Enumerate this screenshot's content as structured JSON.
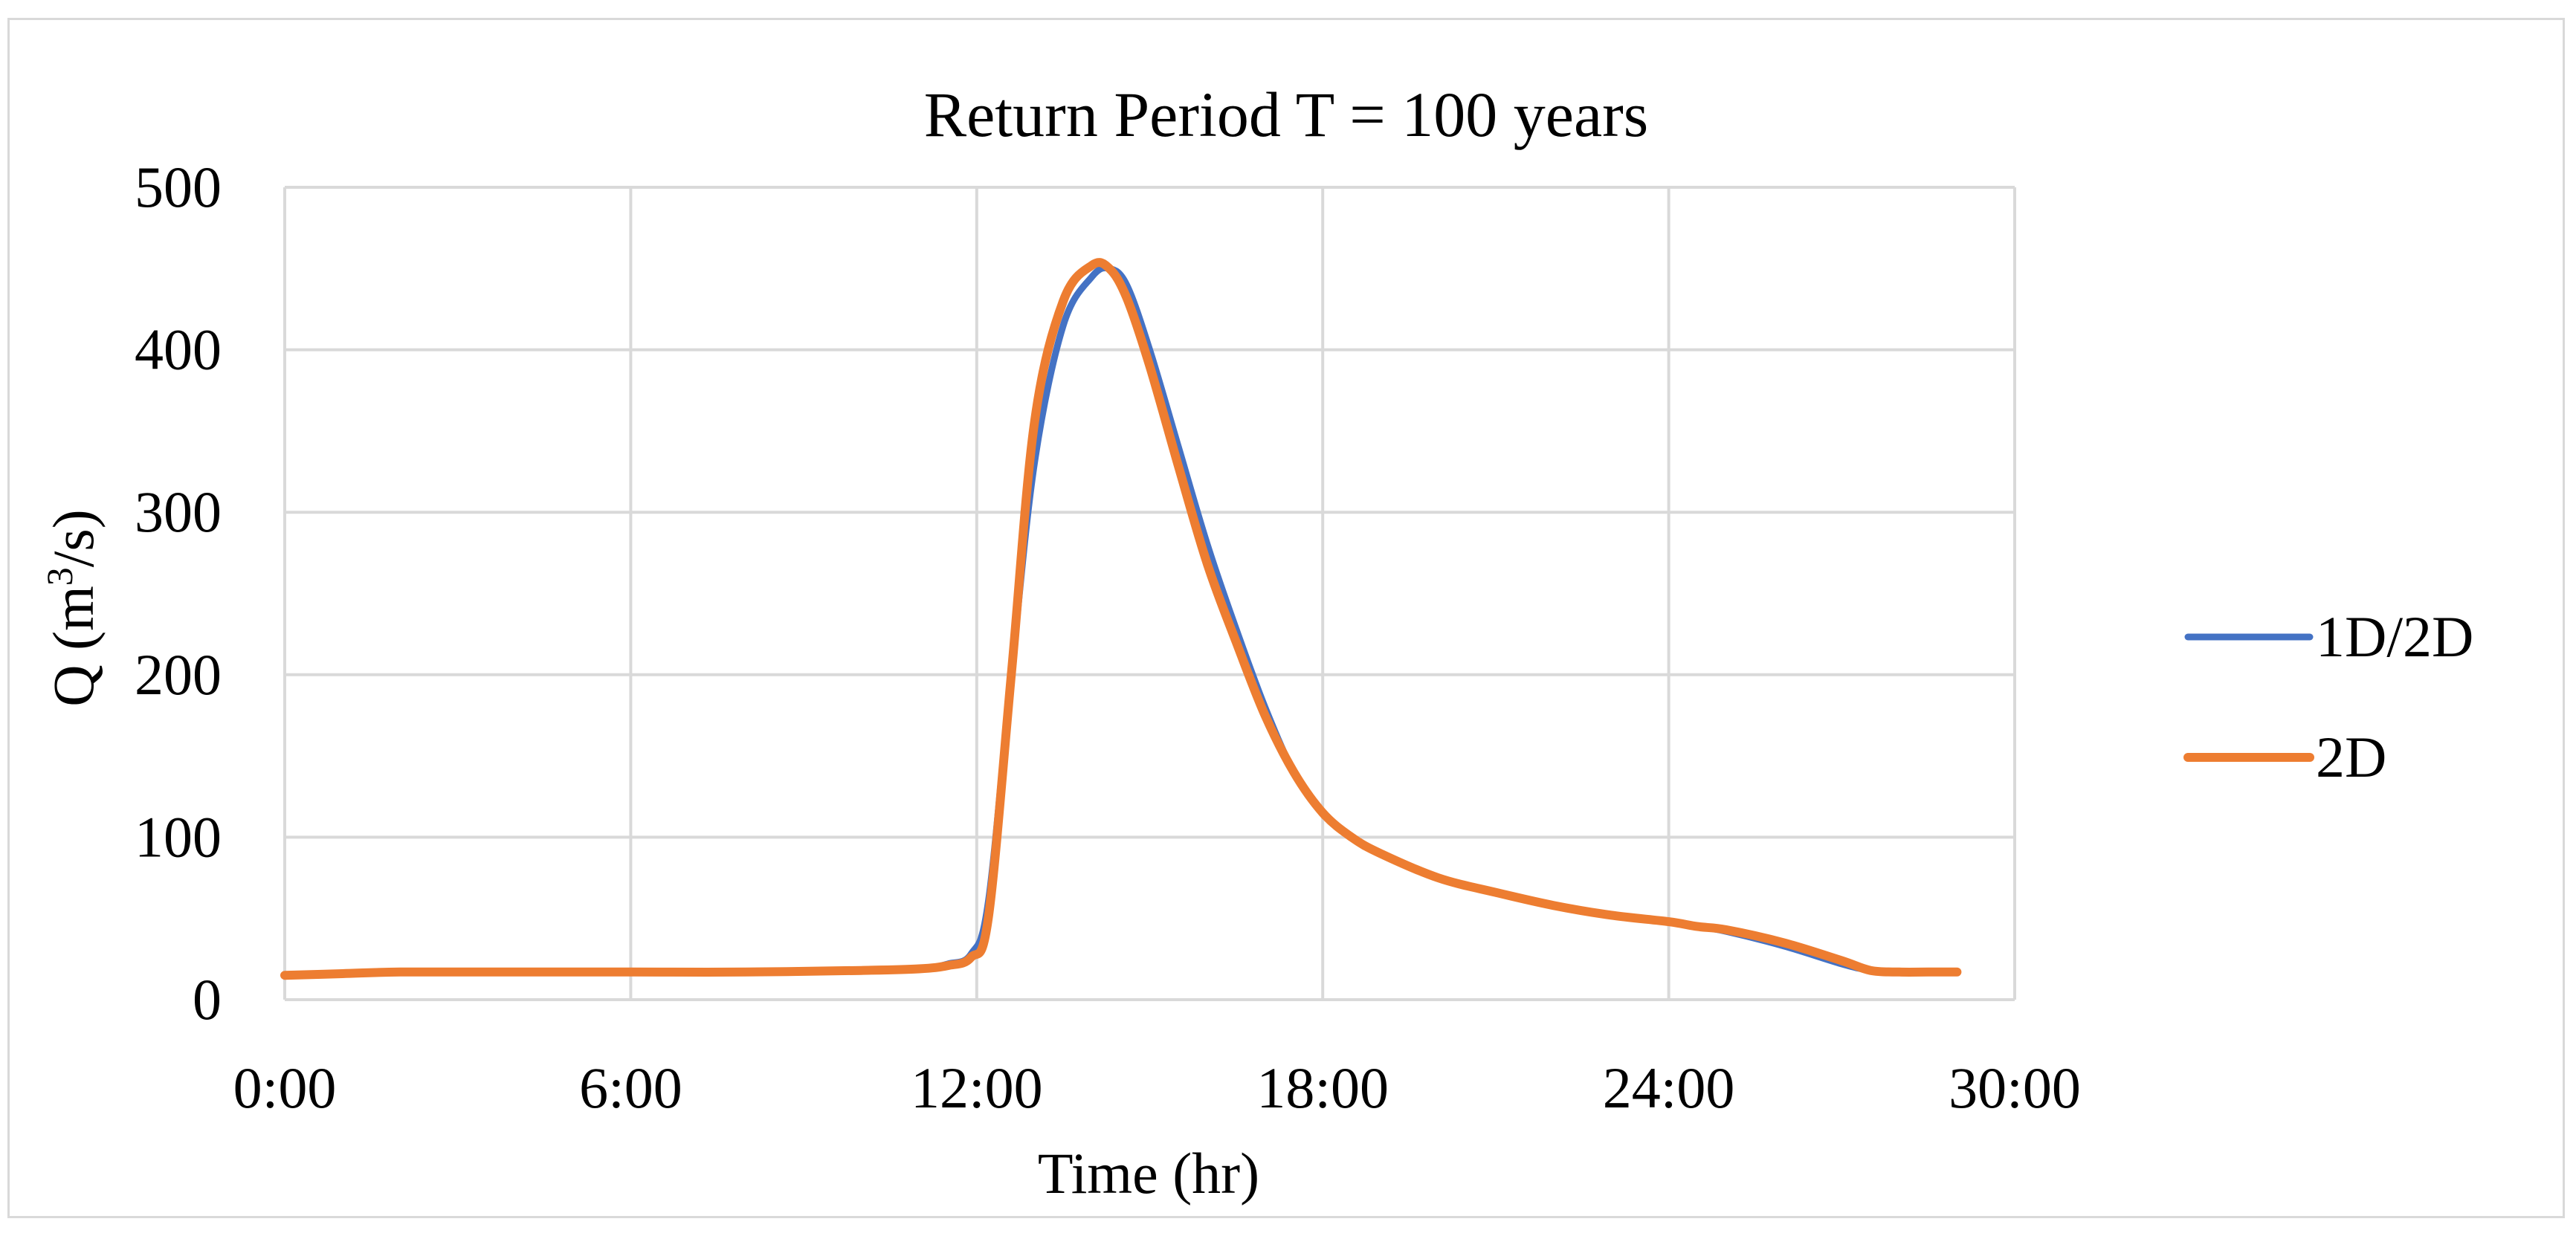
{
  "chart_data": {
    "type": "line",
    "title": "Return Period T = 100 years",
    "xlabel": "Time (hr)",
    "ylabel_main": "Q (m",
    "ylabel_sup": "3",
    "ylabel_tail": "/s)",
    "x_tick_labels": [
      "0:00",
      "6:00",
      "12:00",
      "18:00",
      "24:00",
      "30:00"
    ],
    "y_tick_labels": [
      "0",
      "100",
      "200",
      "300",
      "400",
      "500"
    ],
    "xlim_hours": [
      0,
      30
    ],
    "ylim": [
      0,
      500
    ],
    "grid": true,
    "legend_position": "right",
    "series": [
      {
        "name": "1D/2D",
        "color": "#4472C4",
        "x_hours": [
          0,
          1,
          2,
          4,
          6,
          8,
          10,
          11,
          11.5,
          11.9,
          12.2,
          12.6,
          13.0,
          13.5,
          14.0,
          14.3,
          14.6,
          15.0,
          15.5,
          16.0,
          16.5,
          17.0,
          17.5,
          18.0,
          18.5,
          19.0,
          20.0,
          21.0,
          22.0,
          23.0,
          24.0,
          24.5,
          25.0,
          26.0,
          27.0,
          27.5,
          28.0,
          28.5,
          29.0
        ],
        "values": [
          15,
          16,
          17,
          17,
          17,
          17,
          18,
          19,
          22,
          28,
          60,
          200,
          330,
          415,
          445,
          450,
          440,
          400,
          340,
          280,
          228,
          180,
          140,
          115,
          100,
          90,
          75,
          66,
          58,
          52,
          48,
          45,
          42,
          33,
          22,
          18,
          17,
          17,
          17
        ]
      },
      {
        "name": "2D",
        "color": "#ED7D31",
        "x_hours": [
          0,
          1,
          2,
          4,
          6,
          8,
          10,
          11,
          11.5,
          11.9,
          12.2,
          12.6,
          13.0,
          13.5,
          14.0,
          14.3,
          14.6,
          15.0,
          15.5,
          16.0,
          16.5,
          17.0,
          17.5,
          18.0,
          18.5,
          19.0,
          20.0,
          21.0,
          22.0,
          23.0,
          24.0,
          24.5,
          25.0,
          26.0,
          27.0,
          27.5,
          28.0,
          28.5,
          29.0
        ],
        "values": [
          15,
          16,
          17,
          17,
          17,
          17,
          18,
          19,
          21,
          26,
          50,
          200,
          355,
          430,
          452,
          450,
          432,
          390,
          328,
          268,
          220,
          175,
          140,
          115,
          100,
          90,
          75,
          66,
          58,
          52,
          48,
          45,
          43,
          35,
          24,
          18,
          17,
          17,
          17
        ]
      }
    ]
  }
}
